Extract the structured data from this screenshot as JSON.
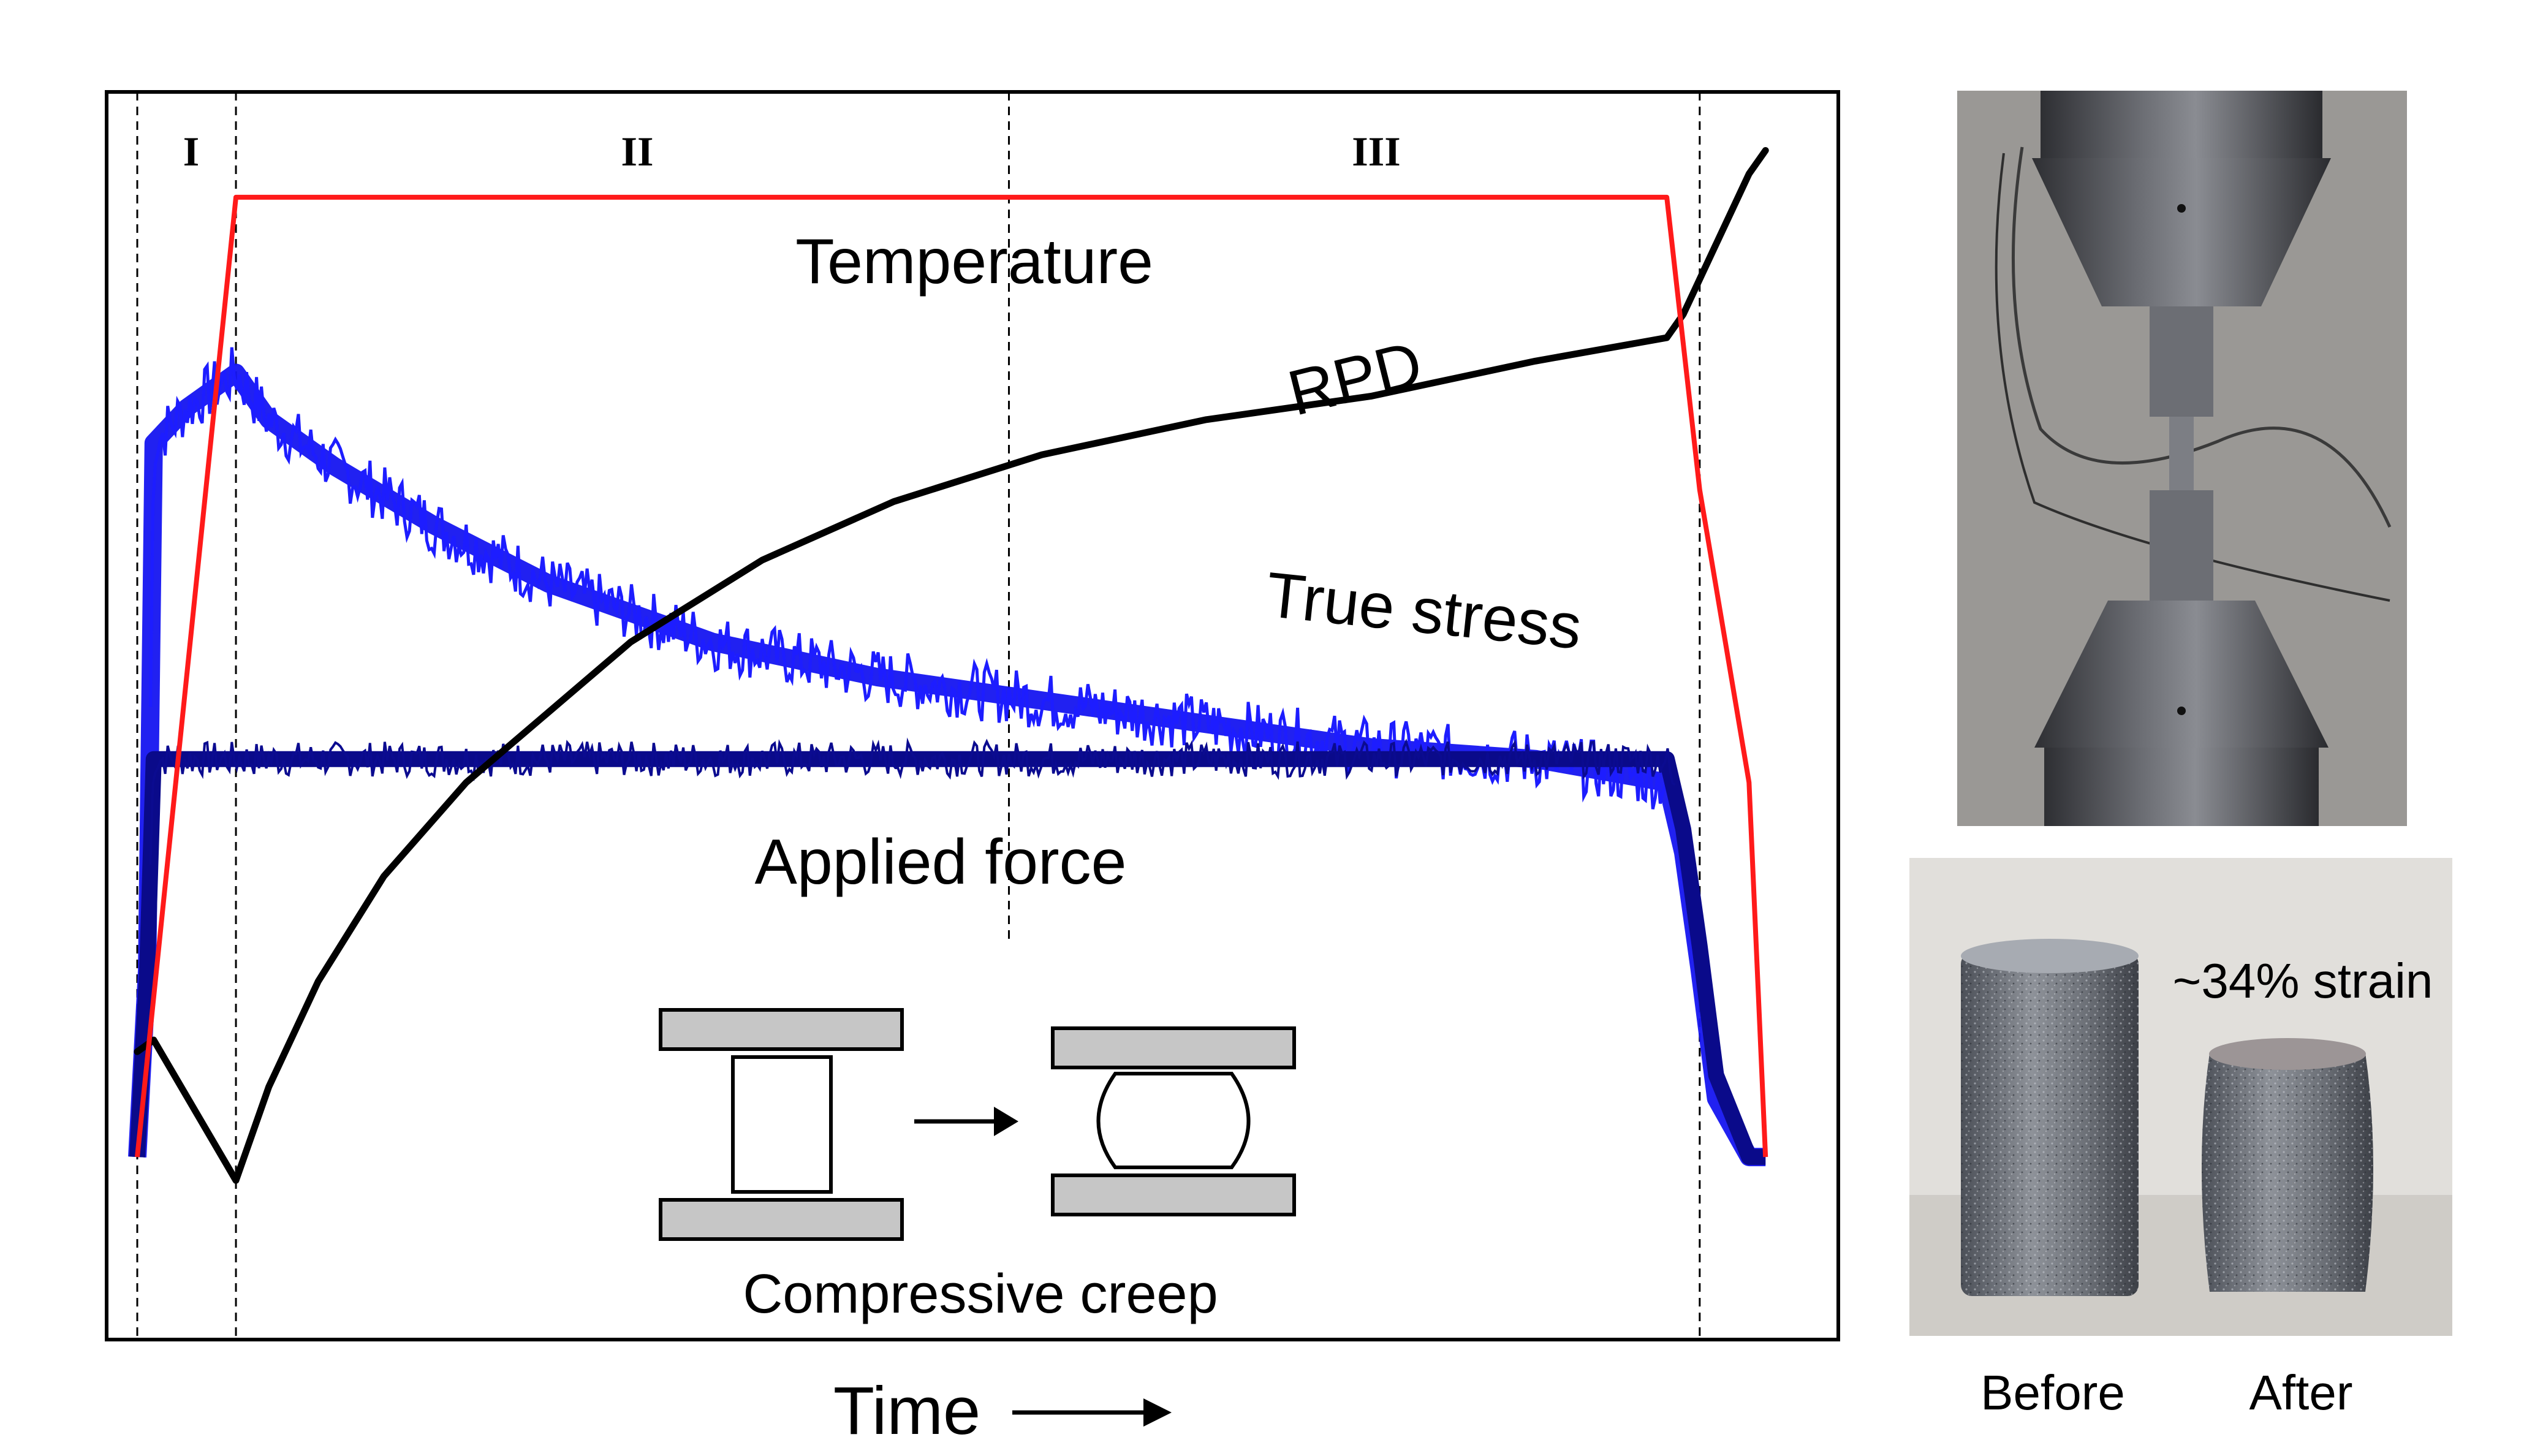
{
  "chart_data": {
    "type": "line",
    "xlabel": "Time",
    "regions": [
      {
        "label": "I",
        "start": 0.0,
        "end": 0.06
      },
      {
        "label": "II",
        "start": 0.06,
        "end": 0.53
      },
      {
        "label": "III",
        "start": 0.53,
        "end": 0.95
      }
    ],
    "x_range": [
      0,
      1
    ],
    "y_range": [
      0,
      1
    ],
    "grid": false,
    "series": [
      {
        "name": "Temperature",
        "color": "#ff1a1a",
        "x": [
          0.0,
          0.06,
          0.93,
          0.95,
          0.98,
          0.99
        ],
        "y": [
          0.09,
          0.91,
          0.91,
          0.66,
          0.41,
          0.09
        ]
      },
      {
        "name": "RPD",
        "color": "#000000",
        "x": [
          0.0,
          0.01,
          0.06,
          0.08,
          0.11,
          0.15,
          0.2,
          0.25,
          0.3,
          0.38,
          0.46,
          0.55,
          0.65,
          0.75,
          0.85,
          0.93,
          0.94,
          0.96,
          0.98,
          0.99
        ],
        "y": [
          0.18,
          0.19,
          0.07,
          0.15,
          0.24,
          0.33,
          0.41,
          0.47,
          0.53,
          0.6,
          0.65,
          0.69,
          0.72,
          0.74,
          0.77,
          0.79,
          0.81,
          0.87,
          0.93,
          0.95
        ]
      },
      {
        "name": "True stress",
        "color": "#1515f0",
        "x": [
          0.0,
          0.006,
          0.01,
          0.03,
          0.06,
          0.08,
          0.12,
          0.18,
          0.25,
          0.35,
          0.45,
          0.55,
          0.65,
          0.75,
          0.85,
          0.93,
          0.94,
          0.95,
          0.96,
          0.98,
          0.99
        ],
        "y": [
          0.09,
          0.25,
          0.7,
          0.73,
          0.76,
          0.72,
          0.68,
          0.63,
          0.58,
          0.53,
          0.5,
          0.48,
          0.46,
          0.44,
          0.43,
          0.41,
          0.35,
          0.25,
          0.14,
          0.09,
          0.09
        ]
      },
      {
        "name": "Applied force",
        "color": "#0a0a8a",
        "x": [
          0.0,
          0.006,
          0.01,
          0.5,
          0.93,
          0.94,
          0.95,
          0.96,
          0.98,
          0.99
        ],
        "y": [
          0.09,
          0.25,
          0.43,
          0.43,
          0.43,
          0.37,
          0.27,
          0.16,
          0.09,
          0.09
        ]
      }
    ],
    "annotations": [
      "Compressive creep"
    ]
  },
  "photos": {
    "sample_caption": "~34% strain",
    "before_label": "Before",
    "after_label": "After"
  }
}
